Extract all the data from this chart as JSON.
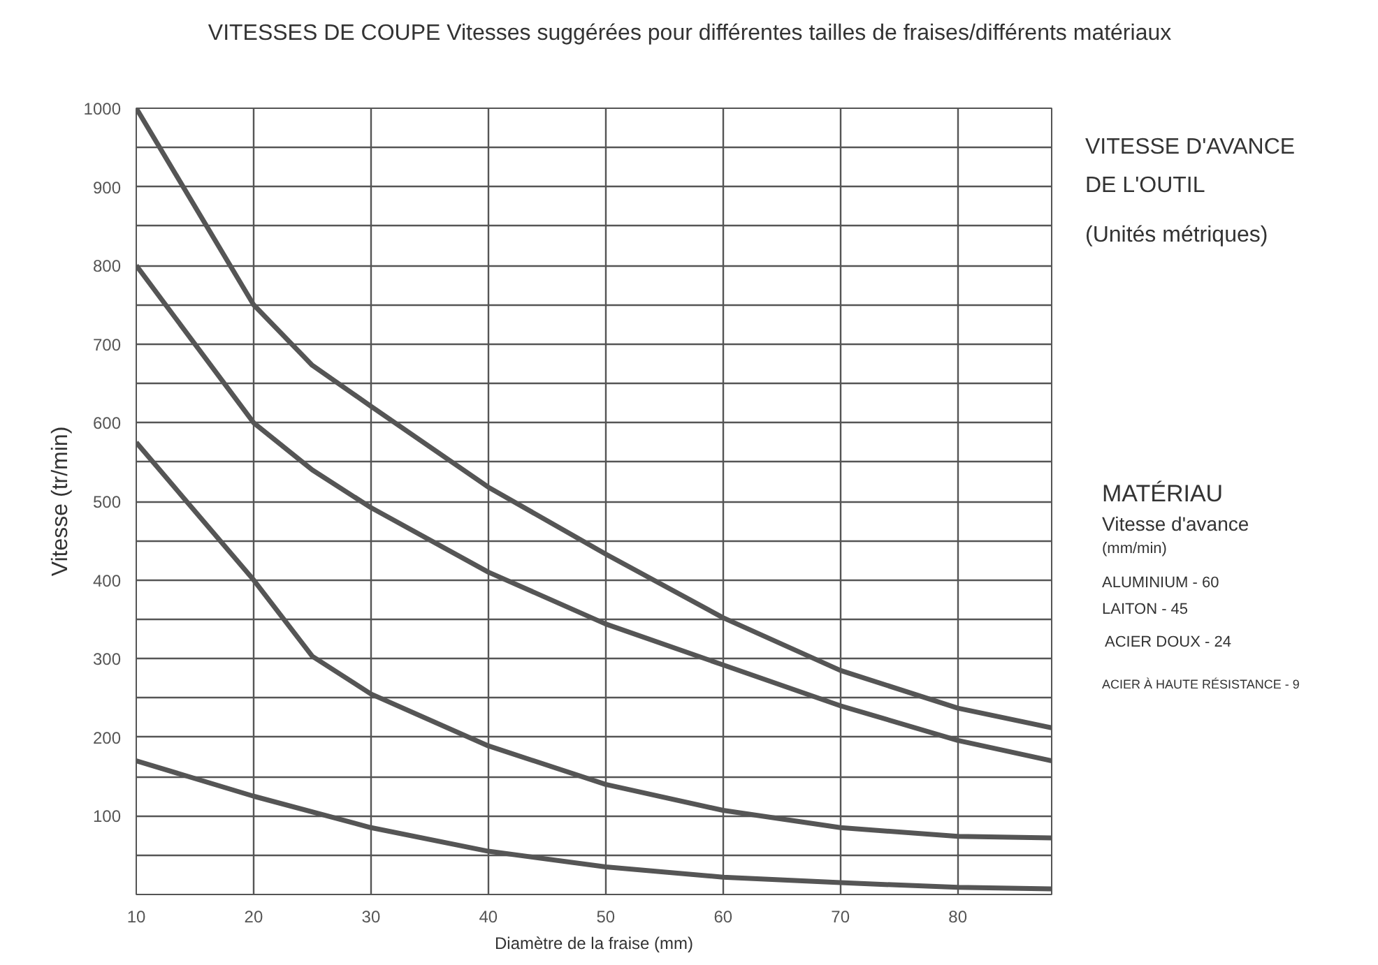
{
  "chart_data": {
    "type": "line",
    "title": "VITESSES DE COUPE Vitesses suggérées pour différentes tailles de fraises/différents matériaux",
    "xlabel": "Diamètre de la fraise (mm)",
    "ylabel": "Vitesse (tr/min)",
    "xlim": [
      10,
      88
    ],
    "ylim": [
      0,
      1000
    ],
    "xticks": [
      10,
      20,
      30,
      40,
      50,
      60,
      70,
      80
    ],
    "yticks": [
      {
        "value": 50,
        "label": null
      },
      100,
      {
        "value": 150,
        "label": null
      },
      200,
      {
        "value": 250,
        "label": null
      },
      300,
      {
        "value": 350,
        "label": null
      },
      400,
      {
        "value": 450,
        "label": null
      },
      500,
      {
        "value": 550,
        "label": null
      },
      600,
      {
        "value": 650,
        "label": null
      },
      700,
      {
        "value": 750,
        "label": null
      },
      800,
      {
        "value": 850,
        "label": null
      },
      900,
      {
        "value": 950,
        "label": null
      },
      1000
    ],
    "grid": true,
    "marker": "none",
    "line_style": "solid",
    "series": [
      {
        "color": "#555555",
        "x": [
          10,
          20,
          25,
          30,
          40,
          50,
          60,
          70,
          80,
          88
        ],
        "values": [
          1000,
          750,
          673,
          621,
          518,
          433,
          352,
          285,
          237,
          212
        ]
      },
      {
        "color": "#555555",
        "x": [
          10,
          20,
          25,
          30,
          40,
          50,
          60,
          70,
          80,
          88
        ],
        "values": [
          800,
          600,
          540,
          492,
          410,
          344,
          292,
          240,
          196,
          170
        ]
      },
      {
        "color": "#555555",
        "x": [
          10,
          20,
          25,
          30,
          40,
          50,
          60,
          70,
          80,
          88
        ],
        "values": [
          575,
          400,
          303,
          255,
          189,
          140,
          107,
          85,
          74,
          72
        ]
      },
      {
        "color": "#555555",
        "x": [
          10,
          20,
          30,
          40,
          50,
          60,
          70,
          80,
          88
        ],
        "values": [
          170,
          125,
          85,
          55,
          35,
          22,
          15,
          9,
          7
        ]
      }
    ],
    "annotations": [
      "VITESSE D'AVANCE",
      "DE L'OUTIL",
      "(Unités métriques)",
      "MATÉRIAU",
      "Vitesse d'avance",
      "(mm/min)",
      "ALUMINIUM - 60",
      "LAITON - 45",
      "ACIER DOUX - 24",
      "ACIER À HAUTE RÉSISTANCE - 9"
    ]
  }
}
